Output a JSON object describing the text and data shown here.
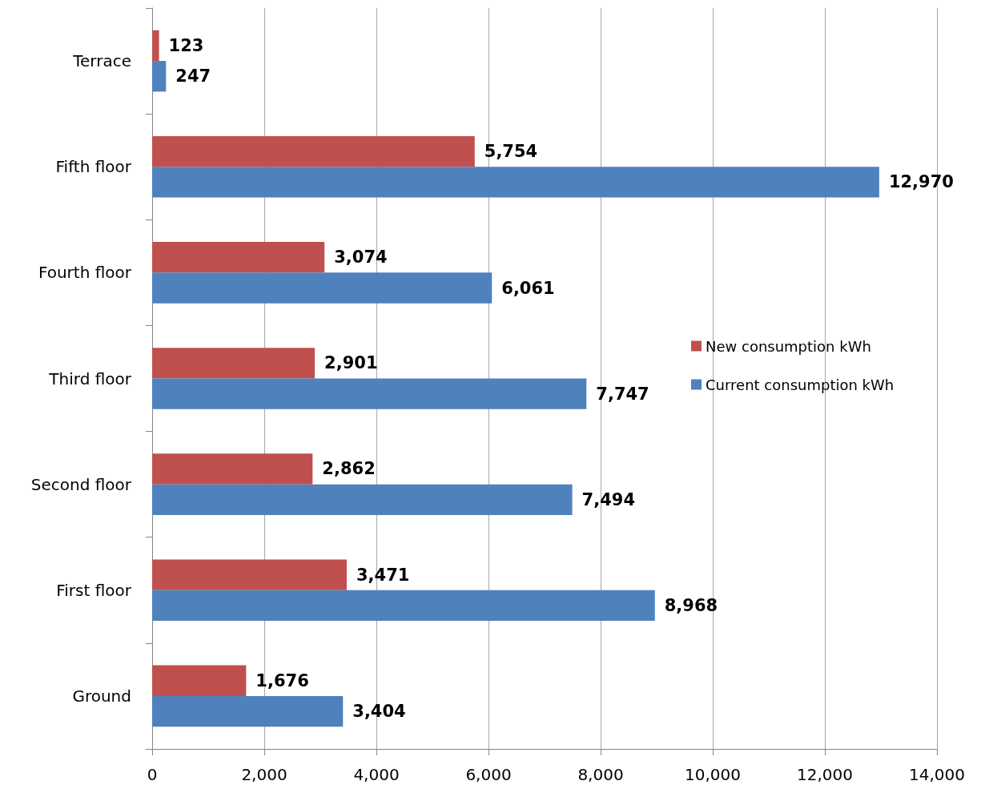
{
  "chart_data": {
    "type": "bar",
    "orientation": "horizontal",
    "categories": [
      "Terrace",
      "Fifth floor",
      "Fourth floor",
      "Third floor",
      "Second floor",
      "First floor",
      "Ground"
    ],
    "series": [
      {
        "name": "New consumption kWh",
        "color": "#c0504d",
        "values": [
          123,
          5754,
          3074,
          2901,
          2862,
          3471,
          1676
        ],
        "value_labels": [
          "123",
          "5,754",
          "3,074",
          "2,901",
          "2,862",
          "3,471",
          "1,676"
        ]
      },
      {
        "name": "Current consumption kWh",
        "color": "#4f81bd",
        "values": [
          247,
          12970,
          6061,
          7747,
          7494,
          8968,
          3404
        ],
        "value_labels": [
          "247",
          "12,970",
          "6,061",
          "7,747",
          "7,494",
          "8,968",
          "3,404"
        ]
      }
    ],
    "xlim": [
      0,
      14000
    ],
    "xticks": [
      0,
      {
        "value": 2000,
        "label": "2,000"
      },
      {
        "value": 4000,
        "label": "4,000"
      },
      {
        "value": 6000,
        "label": "6,000"
      },
      {
        "value": 8000,
        "label": "8,000"
      },
      {
        "value": 10000,
        "label": "10,000"
      },
      {
        "value": 12000,
        "label": "12,000"
      },
      {
        "value": 14000,
        "label": "14,000"
      }
    ],
    "grid": "x",
    "legend": "right"
  }
}
